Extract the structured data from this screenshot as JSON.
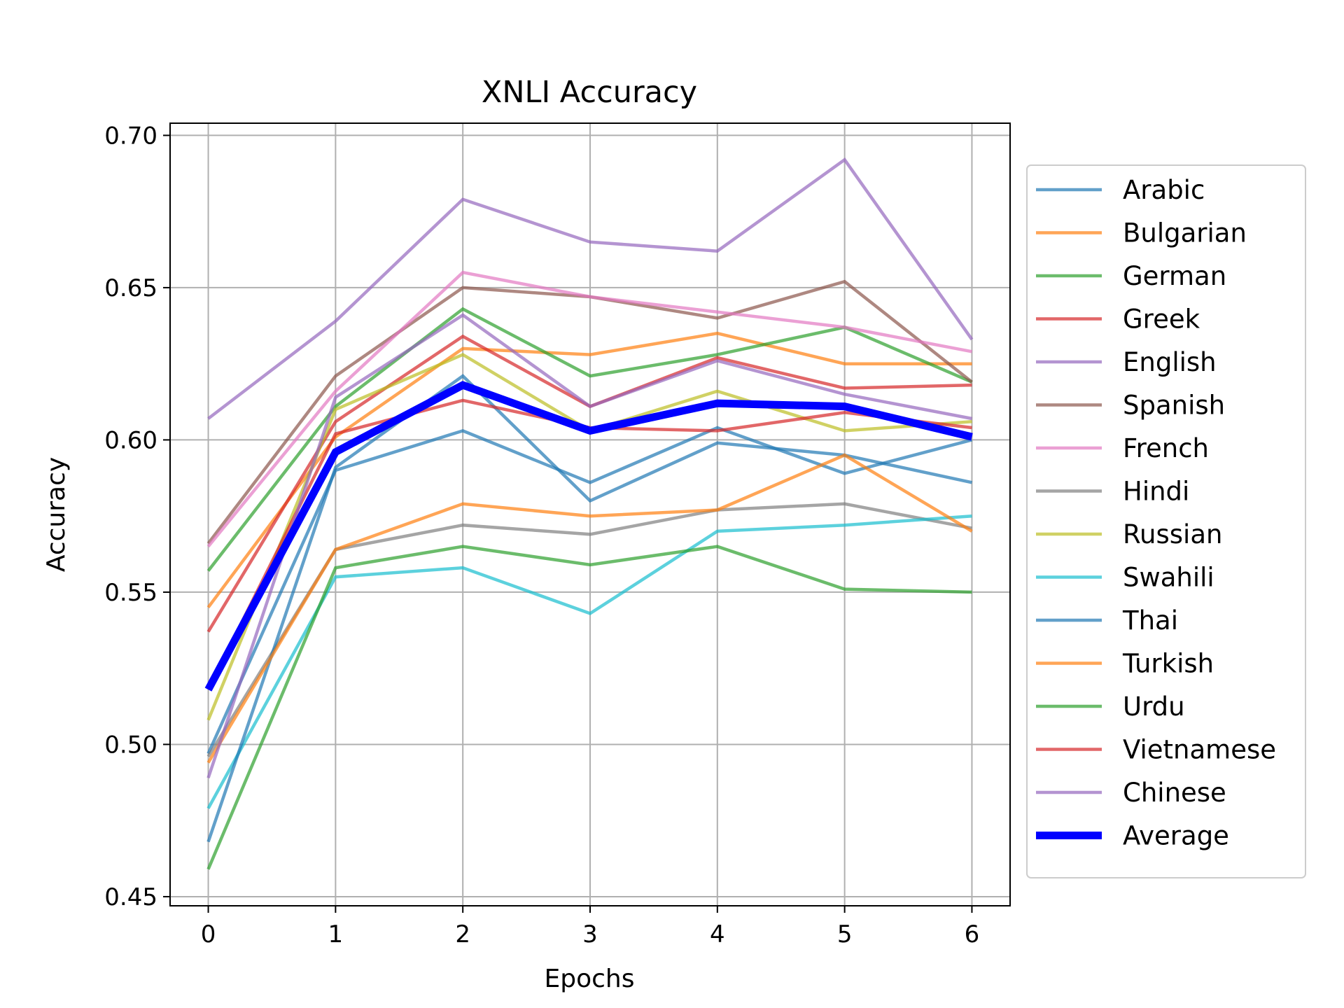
{
  "chart_data": {
    "type": "line",
    "title": "XNLI Accuracy",
    "xlabel": "Epochs",
    "ylabel": "Accuracy",
    "x": [
      0,
      1,
      2,
      3,
      4,
      5,
      6
    ],
    "xlim": [
      -0.3,
      6.3
    ],
    "ylim": [
      0.447,
      0.704
    ],
    "yticks": [
      "0.45",
      "0.50",
      "0.55",
      "0.60",
      "0.65",
      "0.70"
    ],
    "grid": true,
    "legend_position": "outside-right",
    "series": [
      {
        "name": "Arabic",
        "color": "#1f77b4",
        "values": [
          0.497,
          0.59,
          0.603,
          0.586,
          0.604,
          0.589,
          0.6
        ]
      },
      {
        "name": "Bulgarian",
        "color": "#ff7f0e",
        "values": [
          0.545,
          0.601,
          0.63,
          0.628,
          0.635,
          0.625,
          0.625
        ]
      },
      {
        "name": "German",
        "color": "#2ca02c",
        "values": [
          0.557,
          0.611,
          0.643,
          0.621,
          0.628,
          0.637,
          0.619
        ]
      },
      {
        "name": "Greek",
        "color": "#d62728",
        "values": [
          0.537,
          0.606,
          0.634,
          0.611,
          0.627,
          0.617,
          0.618
        ]
      },
      {
        "name": "English",
        "color": "#9467bd",
        "values": [
          0.607,
          0.639,
          0.679,
          0.665,
          0.662,
          0.692,
          0.633
        ]
      },
      {
        "name": "Spanish",
        "color": "#8c564b",
        "values": [
          0.566,
          0.621,
          0.65,
          0.647,
          0.64,
          0.652,
          0.619
        ]
      },
      {
        "name": "French",
        "color": "#e377c2",
        "values": [
          0.565,
          0.616,
          0.655,
          0.647,
          0.642,
          0.637,
          0.629
        ]
      },
      {
        "name": "Hindi",
        "color": "#7f7f7f",
        "values": [
          0.496,
          0.564,
          0.572,
          0.569,
          0.577,
          0.579,
          0.571
        ]
      },
      {
        "name": "Russian",
        "color": "#bcbd22",
        "values": [
          0.508,
          0.61,
          0.628,
          0.603,
          0.616,
          0.603,
          0.606
        ]
      },
      {
        "name": "Swahili",
        "color": "#17becf",
        "values": [
          0.479,
          0.555,
          0.558,
          0.543,
          0.57,
          0.572,
          0.575
        ]
      },
      {
        "name": "Thai",
        "color": "#1f77b4",
        "values": [
          0.468,
          0.591,
          0.621,
          0.58,
          0.599,
          0.595,
          0.586
        ]
      },
      {
        "name": "Turkish",
        "color": "#ff7f0e",
        "values": [
          0.494,
          0.564,
          0.579,
          0.575,
          0.577,
          0.595,
          0.57
        ]
      },
      {
        "name": "Urdu",
        "color": "#2ca02c",
        "values": [
          0.459,
          0.558,
          0.565,
          0.559,
          0.565,
          0.551,
          0.55
        ]
      },
      {
        "name": "Vietnamese",
        "color": "#d62728",
        "values": [
          0.518,
          0.602,
          0.613,
          0.604,
          0.603,
          0.609,
          0.604
        ]
      },
      {
        "name": "Chinese",
        "color": "#9467bd",
        "values": [
          0.489,
          0.614,
          0.641,
          0.611,
          0.626,
          0.615,
          0.607
        ]
      },
      {
        "name": "Average",
        "color": "#0000ff",
        "emphasis": true,
        "values": [
          0.518,
          0.596,
          0.618,
          0.603,
          0.612,
          0.611,
          0.601
        ]
      }
    ]
  }
}
